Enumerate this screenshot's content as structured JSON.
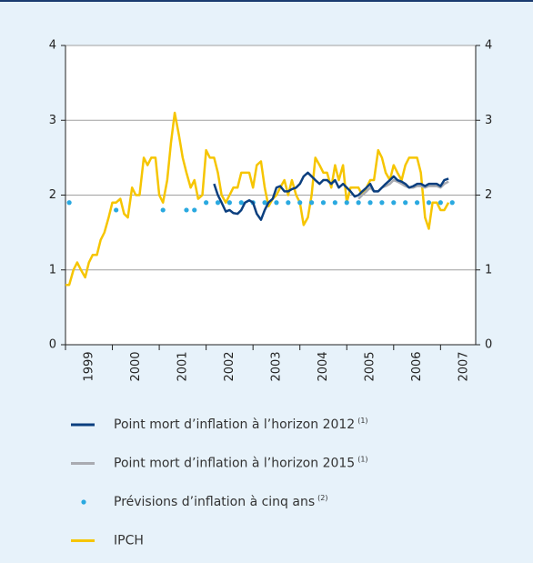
{
  "chart_data": {
    "type": "line",
    "xlim": [
      1999,
      2007.75
    ],
    "xticks": [
      1999,
      2000,
      2001,
      2002,
      2003,
      2004,
      2005,
      2006,
      2007
    ],
    "ylim": [
      0,
      4
    ],
    "yticks": [
      0,
      1,
      2,
      3,
      4
    ],
    "y2lim": [
      0,
      4
    ],
    "y2ticks": [
      0,
      1,
      2,
      3,
      4
    ],
    "grid": true,
    "x": [
      1999,
      1999.08,
      1999.17,
      1999.25,
      1999.33,
      1999.42,
      1999.5,
      1999.58,
      1999.67,
      1999.75,
      1999.83,
      1999.92,
      2000,
      2000.08,
      2000.17,
      2000.25,
      2000.33,
      2000.42,
      2000.5,
      2000.58,
      2000.67,
      2000.75,
      2000.83,
      2000.92,
      2001,
      2001.08,
      2001.17,
      2001.25,
      2001.33,
      2001.42,
      2001.5,
      2001.58,
      2001.67,
      2001.75,
      2001.83,
      2001.92,
      2002,
      2002.08,
      2002.17,
      2002.25,
      2002.33,
      2002.42,
      2002.5,
      2002.58,
      2002.67,
      2002.75,
      2002.83,
      2002.92,
      2003,
      2003.08,
      2003.17,
      2003.25,
      2003.33,
      2003.42,
      2003.5,
      2003.58,
      2003.67,
      2003.75,
      2003.83,
      2003.92,
      2004,
      2004.08,
      2004.17,
      2004.25,
      2004.33,
      2004.42,
      2004.5,
      2004.58,
      2004.67,
      2004.75,
      2004.83,
      2004.92,
      2005,
      2005.08,
      2005.17,
      2005.25,
      2005.33,
      2005.42,
      2005.5,
      2005.58,
      2005.67,
      2005.75,
      2005.83,
      2005.92,
      2006,
      2006.08,
      2006.17,
      2006.25,
      2006.33,
      2006.42,
      2006.5,
      2006.58,
      2006.67,
      2006.75,
      2006.83,
      2006.92,
      2007,
      2007.08,
      2007.17
    ],
    "series": [
      {
        "name": "Point mort d’inflation à l’horizon 2012",
        "footnote": "(1)",
        "color": "#0b3f7f",
        "values": [
          null,
          null,
          null,
          null,
          null,
          null,
          null,
          null,
          null,
          null,
          null,
          null,
          null,
          null,
          null,
          null,
          null,
          null,
          null,
          null,
          null,
          null,
          null,
          null,
          null,
          null,
          null,
          null,
          null,
          null,
          null,
          null,
          null,
          null,
          null,
          null,
          null,
          null,
          2.15,
          2.0,
          1.9,
          1.78,
          1.8,
          1.76,
          1.75,
          1.8,
          1.9,
          1.93,
          1.9,
          1.75,
          1.67,
          1.8,
          1.9,
          1.95,
          2.1,
          2.12,
          2.05,
          2.05,
          2.08,
          2.1,
          2.15,
          2.25,
          2.3,
          2.25,
          2.2,
          2.15,
          2.2,
          2.2,
          2.15,
          2.2,
          2.1,
          2.15,
          2.1,
          2.05,
          1.98,
          2.0,
          2.05,
          2.1,
          2.15,
          2.05,
          2.05,
          2.1,
          2.15,
          2.2,
          2.25,
          2.2,
          2.18,
          2.15,
          2.1,
          2.12,
          2.15,
          2.15,
          2.12,
          2.15,
          2.15,
          2.15,
          2.12,
          2.2,
          2.22
        ]
      },
      {
        "name": "Point mort d’inflation à l’horizon 2015",
        "footnote": "(1)",
        "color": "#a9abb1",
        "values": [
          null,
          null,
          null,
          null,
          null,
          null,
          null,
          null,
          null,
          null,
          null,
          null,
          null,
          null,
          null,
          null,
          null,
          null,
          null,
          null,
          null,
          null,
          null,
          null,
          null,
          null,
          null,
          null,
          null,
          null,
          null,
          null,
          null,
          null,
          null,
          null,
          null,
          null,
          null,
          null,
          null,
          null,
          null,
          null,
          null,
          null,
          null,
          null,
          null,
          null,
          null,
          null,
          null,
          null,
          null,
          null,
          null,
          null,
          null,
          null,
          null,
          null,
          null,
          null,
          null,
          null,
          null,
          null,
          null,
          null,
          null,
          null,
          null,
          null,
          null,
          1.95,
          2.0,
          2.05,
          2.1,
          2.05,
          2.05,
          2.1,
          2.12,
          2.15,
          2.2,
          2.18,
          2.15,
          2.12,
          2.1,
          2.1,
          2.12,
          2.12,
          2.1,
          2.12,
          2.12,
          2.12,
          2.1,
          2.15,
          2.18
        ]
      },
      {
        "name": "Prévisions d’inflation à cinq ans",
        "footnote": "(2)",
        "type": "scatter",
        "color": "#2aa9e0",
        "x": [
          1999.08,
          2000.08,
          2001.08,
          2001.58,
          2001.75,
          2002,
          2002.25,
          2002.5,
          2002.75,
          2003,
          2003.25,
          2003.5,
          2003.75,
          2004,
          2004.25,
          2004.5,
          2004.75,
          2005,
          2005.25,
          2005.5,
          2005.75,
          2006,
          2006.25,
          2006.5,
          2006.75,
          2007,
          2007.25
        ],
        "values": [
          1.9,
          1.8,
          1.8,
          1.8,
          1.8,
          1.9,
          1.9,
          1.9,
          1.9,
          1.9,
          1.9,
          1.9,
          1.9,
          1.9,
          1.9,
          1.9,
          1.9,
          1.9,
          1.9,
          1.9,
          1.9,
          1.9,
          1.9,
          1.9,
          1.9,
          1.9,
          1.9
        ]
      },
      {
        "name": "IPCH",
        "color": "#f6c500",
        "values": [
          0.8,
          0.8,
          1.0,
          1.1,
          1.0,
          0.9,
          1.1,
          1.2,
          1.2,
          1.4,
          1.5,
          1.7,
          1.9,
          1.9,
          1.95,
          1.75,
          1.7,
          2.1,
          2.0,
          2.0,
          2.5,
          2.4,
          2.5,
          2.5,
          2.0,
          1.9,
          2.2,
          2.7,
          3.1,
          2.8,
          2.5,
          2.3,
          2.1,
          2.2,
          1.95,
          2.0,
          2.6,
          2.5,
          2.5,
          2.3,
          2.0,
          1.9,
          2.0,
          2.1,
          2.1,
          2.3,
          2.3,
          2.3,
          2.1,
          2.4,
          2.45,
          2.1,
          1.85,
          1.95,
          2.0,
          2.1,
          2.2,
          2.0,
          2.2,
          2.0,
          1.9,
          1.6,
          1.7,
          2.0,
          2.5,
          2.4,
          2.3,
          2.3,
          2.1,
          2.4,
          2.2,
          2.4,
          1.9,
          2.1,
          2.1,
          2.1,
          2.0,
          2.1,
          2.2,
          2.2,
          2.6,
          2.5,
          2.3,
          2.2,
          2.4,
          2.3,
          2.2,
          2.4,
          2.5,
          2.5,
          2.5,
          2.3,
          1.7,
          1.55,
          1.9,
          1.9,
          1.8,
          1.8,
          1.9
        ]
      }
    ]
  }
}
